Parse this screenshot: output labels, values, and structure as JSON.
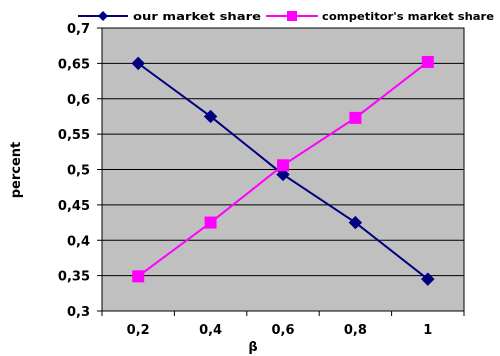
{
  "chart_data": {
    "type": "line",
    "title": "",
    "xlabel": "β",
    "ylabel": "percent",
    "x": [
      0.2,
      0.4,
      0.6,
      0.8,
      1.0
    ],
    "x_tick_labels": [
      "0,2",
      "0,4",
      "0,6",
      "0,8",
      "1"
    ],
    "xlim": [
      0.1,
      1.1
    ],
    "ylim": [
      0.3,
      0.7
    ],
    "y_ticks": [
      0.3,
      0.35,
      0.4,
      0.45,
      0.5,
      0.55,
      0.6,
      0.65,
      0.7
    ],
    "y_tick_labels": [
      "0,3",
      "0,35",
      "0,4",
      "0,45",
      "0,5",
      "0,55",
      "0,6",
      "0,65",
      "0,7"
    ],
    "grid": "horizontal",
    "plot_background": "#c0c0c0",
    "legend_position": "top",
    "series": [
      {
        "name": "our market share",
        "color": "#000080",
        "marker": "diamond",
        "values": [
          0.65,
          0.575,
          0.493,
          0.425,
          0.345
        ]
      },
      {
        "name": "competitor's market share",
        "color": "#ff00ff",
        "marker": "square",
        "values": [
          0.349,
          0.425,
          0.506,
          0.573,
          0.652
        ]
      }
    ]
  }
}
